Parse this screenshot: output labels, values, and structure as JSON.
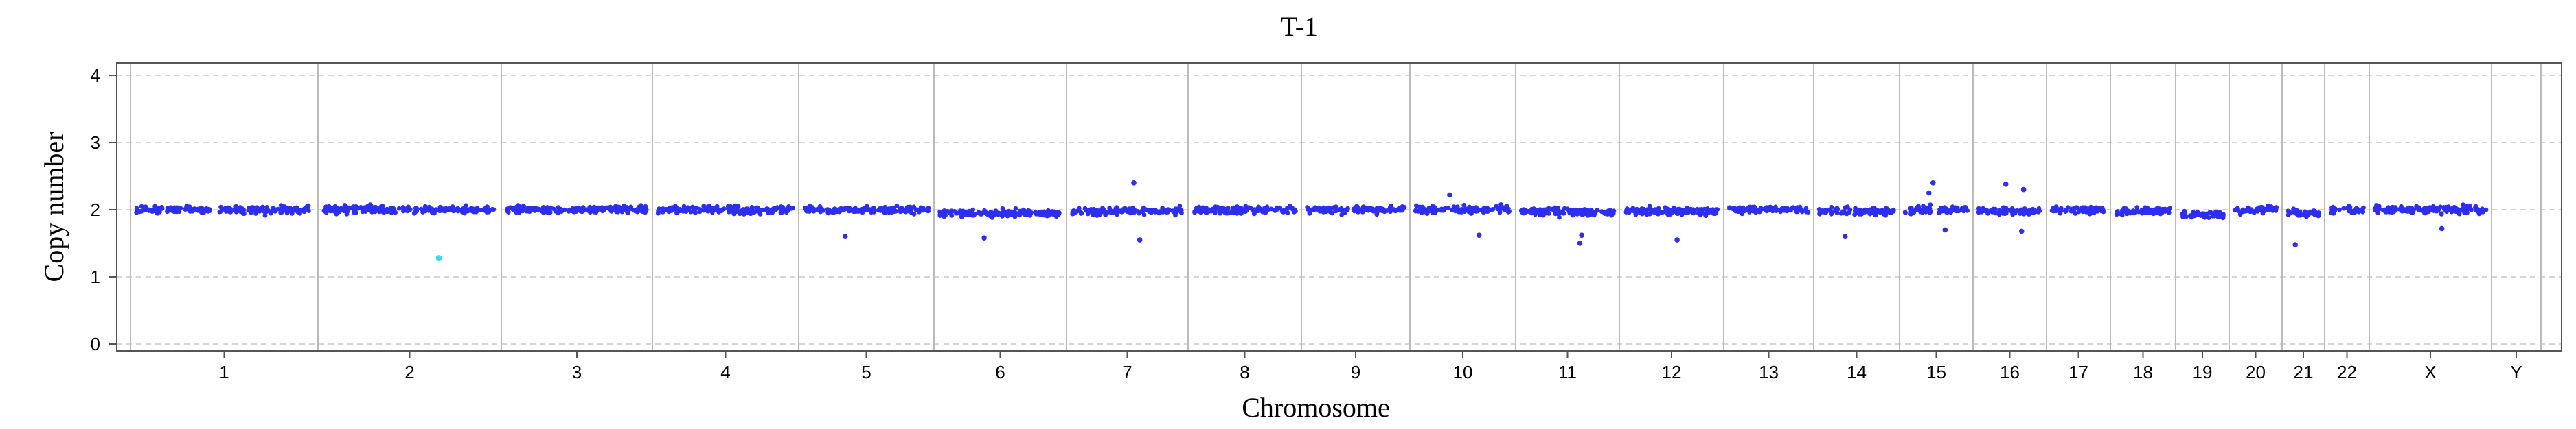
{
  "chart_data": {
    "type": "scatter",
    "title": "T-1",
    "xlabel": "Chromosome",
    "ylabel": "Copy number",
    "ylim": [
      0,
      4
    ],
    "yticks": [
      0,
      1,
      2,
      3,
      4
    ],
    "grid": "horizontal dashed",
    "colors": {
      "points": "#2e2ef0",
      "highlight": "#33e0f0",
      "gridline": "#c8c8c8",
      "separator": "#bbbbbb"
    },
    "chromosomes": [
      {
        "label": "1",
        "baseline": 2.0
      },
      {
        "label": "2",
        "baseline": 2.0
      },
      {
        "label": "3",
        "baseline": 2.0
      },
      {
        "label": "4",
        "baseline": 2.0
      },
      {
        "label": "5",
        "baseline": 2.0
      },
      {
        "label": "6",
        "baseline": 1.95
      },
      {
        "label": "7",
        "baseline": 1.98
      },
      {
        "label": "8",
        "baseline": 2.0
      },
      {
        "label": "9",
        "baseline": 2.0
      },
      {
        "label": "10",
        "baseline": 2.0
      },
      {
        "label": "11",
        "baseline": 1.97
      },
      {
        "label": "12",
        "baseline": 1.98
      },
      {
        "label": "13",
        "baseline": 2.0
      },
      {
        "label": "14",
        "baseline": 1.98
      },
      {
        "label": "15",
        "baseline": 2.0
      },
      {
        "label": "16",
        "baseline": 1.98
      },
      {
        "label": "17",
        "baseline": 2.0
      },
      {
        "label": "18",
        "baseline": 1.98
      },
      {
        "label": "19",
        "baseline": 1.93
      },
      {
        "label": "20",
        "baseline": 2.0
      },
      {
        "label": "21",
        "baseline": 1.95
      },
      {
        "label": "22",
        "baseline": 2.0
      },
      {
        "label": "X",
        "baseline": 2.0
      },
      {
        "label": "Y",
        "baseline": null
      }
    ],
    "outliers": [
      {
        "chromosome": "2",
        "y": 1.28,
        "highlight": true
      },
      {
        "chromosome": "5",
        "y": 1.6
      },
      {
        "chromosome": "6",
        "y": 1.58
      },
      {
        "chromosome": "7",
        "y": 2.4
      },
      {
        "chromosome": "7",
        "y": 1.55
      },
      {
        "chromosome": "10",
        "y": 1.62
      },
      {
        "chromosome": "10",
        "y": 2.22
      },
      {
        "chromosome": "11",
        "y": 1.5
      },
      {
        "chromosome": "11",
        "y": 1.62
      },
      {
        "chromosome": "12",
        "y": 1.55
      },
      {
        "chromosome": "14",
        "y": 1.6
      },
      {
        "chromosome": "15",
        "y": 2.4
      },
      {
        "chromosome": "15",
        "y": 2.25
      },
      {
        "chromosome": "15",
        "y": 1.7
      },
      {
        "chromosome": "16",
        "y": 2.38
      },
      {
        "chromosome": "16",
        "y": 2.3
      },
      {
        "chromosome": "16",
        "y": 1.68
      },
      {
        "chromosome": "21",
        "y": 1.48
      },
      {
        "chromosome": "X",
        "y": 1.72
      }
    ]
  }
}
